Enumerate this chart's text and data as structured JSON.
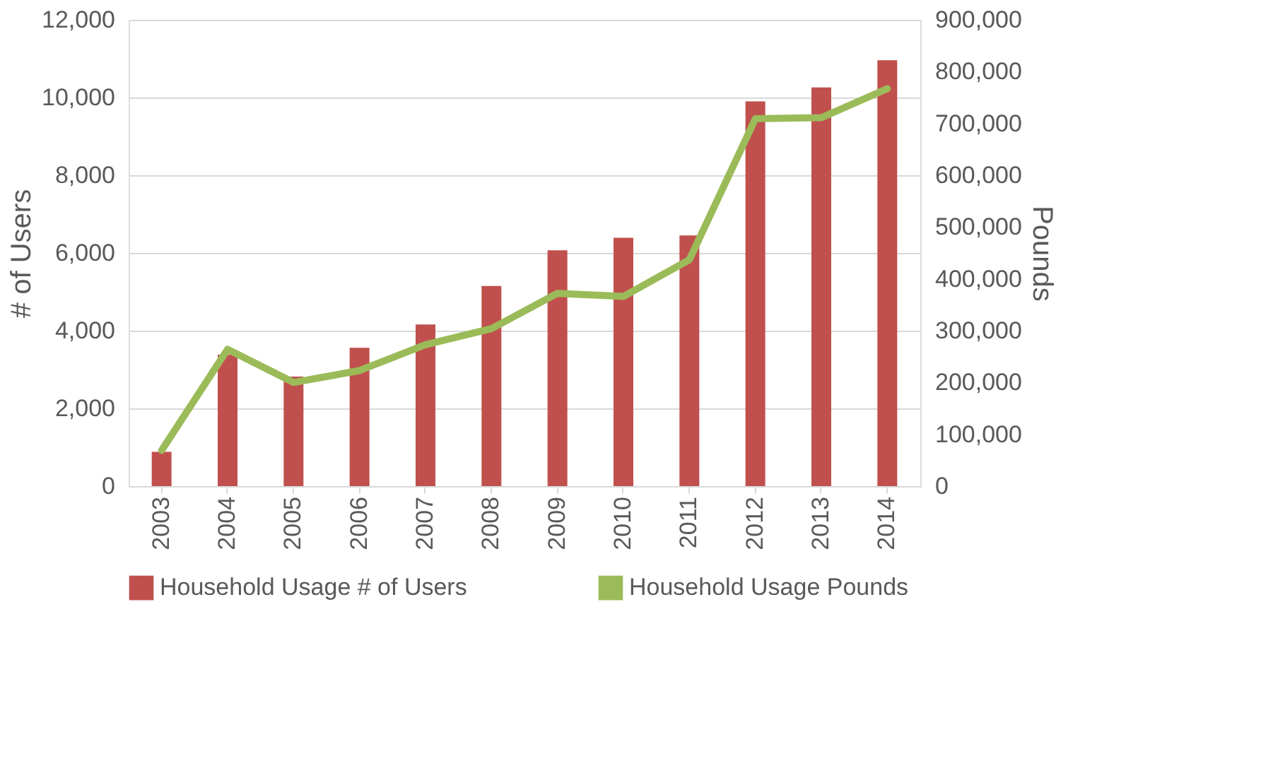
{
  "chart_data": {
    "type": "bar",
    "categories": [
      "2003",
      "2004",
      "2005",
      "2006",
      "2007",
      "2008",
      "2009",
      "2010",
      "2011",
      "2012",
      "2013",
      "2014"
    ],
    "series": [
      {
        "name": "Household Usage # of Users",
        "color": "#c0504d",
        "values": [
          880,
          3380,
          2820,
          3560,
          4160,
          5150,
          6070,
          6390,
          6450,
          9900,
          10260,
          10960
        ]
      },
      {
        "name": "Household Usage Pounds",
        "type": "line",
        "axis": "y2",
        "color": "#9bbb59",
        "values": [
          69000,
          264000,
          200000,
          223000,
          273000,
          304000,
          372000,
          366000,
          437000,
          709000,
          711000,
          767000
        ]
      }
    ],
    "ylabel": "# of Users",
    "y2label": "Pounds",
    "ylim": [
      0,
      12000
    ],
    "yticks": [
      0,
      {
        "value": 2000,
        "label": "2,000"
      },
      {
        "value": 4000,
        "label": "4,000"
      },
      {
        "value": 6000,
        "label": "6,000"
      },
      {
        "value": 8000,
        "label": "8,000"
      },
      {
        "value": 10000,
        "label": "10,000"
      },
      {
        "value": 12000,
        "label": "12,000"
      }
    ],
    "y2lim": [
      0,
      900000
    ],
    "y2ticks": [
      0,
      {
        "value": 100000,
        "label": "100,000"
      },
      {
        "value": 200000,
        "label": "200,000"
      },
      {
        "value": 300000,
        "label": "300,000"
      },
      {
        "value": 400000,
        "label": "400,000"
      },
      {
        "value": 500000,
        "label": "500,000"
      },
      {
        "value": 600000,
        "label": "600,000"
      },
      {
        "value": 700000,
        "label": "700,000"
      },
      {
        "value": 800000,
        "label": "800,000"
      },
      {
        "value": 900000,
        "label": "900,000"
      }
    ],
    "grid": "y",
    "legend": "bottom",
    "marker": "none",
    "line_style": "solid"
  }
}
